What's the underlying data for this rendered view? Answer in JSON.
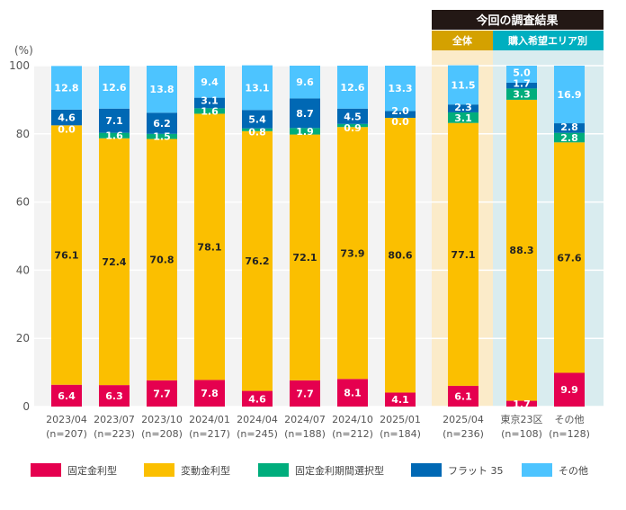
{
  "chart_data": {
    "type": "bar",
    "stacked": true,
    "unit_label": "(%)",
    "ylim": [
      0,
      100
    ],
    "yticks": [
      0,
      20,
      40,
      60,
      80,
      100
    ],
    "grid": true,
    "legend_position": "bottom",
    "header": {
      "title": "今回の調査結果",
      "group_all": "全体",
      "group_area": "購入希望エリア別"
    },
    "categories": [
      {
        "label": "2023/04",
        "n": "(n=207)"
      },
      {
        "label": "2023/07",
        "n": "(n=223)"
      },
      {
        "label": "2023/10",
        "n": "(n=208)"
      },
      {
        "label": "2024/01",
        "n": "(n=217)"
      },
      {
        "label": "2024/04",
        "n": "(n=245)"
      },
      {
        "label": "2024/07",
        "n": "(n=188)"
      },
      {
        "label": "2024/10",
        "n": "(n=212)"
      },
      {
        "label": "2025/01",
        "n": "(n=184)"
      },
      {
        "label": "2025/04",
        "n": "(n=236)"
      },
      {
        "label": "東京23区",
        "n": "(n=108)"
      },
      {
        "label": "その他",
        "n": "(n=128)"
      }
    ],
    "series": [
      {
        "name": "固定金利型",
        "color": "#e5004f",
        "text_color": "#ffffff",
        "values": [
          6.4,
          6.3,
          7.7,
          7.8,
          4.6,
          7.7,
          8.1,
          4.1,
          6.1,
          1.7,
          9.9
        ]
      },
      {
        "name": "変動金利型",
        "color": "#fbbf00",
        "text_color": "#222222",
        "values": [
          76.1,
          72.4,
          70.8,
          78.1,
          76.2,
          72.1,
          73.9,
          80.6,
          77.1,
          88.3,
          67.6
        ]
      },
      {
        "name": "固定金利期間選択型",
        "color": "#00ad7c",
        "text_color": "#ffffff",
        "values": [
          0.0,
          1.6,
          1.5,
          1.6,
          0.8,
          1.9,
          0.9,
          0.0,
          3.1,
          3.3,
          2.8
        ]
      },
      {
        "name": "フラット 35",
        "color": "#0068b4",
        "text_color": "#ffffff",
        "values": [
          4.6,
          7.1,
          6.2,
          3.1,
          5.4,
          8.7,
          4.5,
          2.0,
          2.3,
          1.7,
          2.8
        ]
      },
      {
        "name": "その他",
        "color": "#4dc4ff",
        "text_color": "#ffffff",
        "values": [
          12.8,
          12.6,
          13.8,
          9.4,
          13.1,
          9.6,
          12.6,
          13.3,
          11.5,
          5.0,
          16.9
        ]
      }
    ],
    "colors": {
      "background_past": "#f3f3f3",
      "background_all": "#fbebc9",
      "background_area": "#d9ecef",
      "header_dark": "#231815",
      "header_all": "#d4a100",
      "header_area": "#00afc0"
    }
  }
}
